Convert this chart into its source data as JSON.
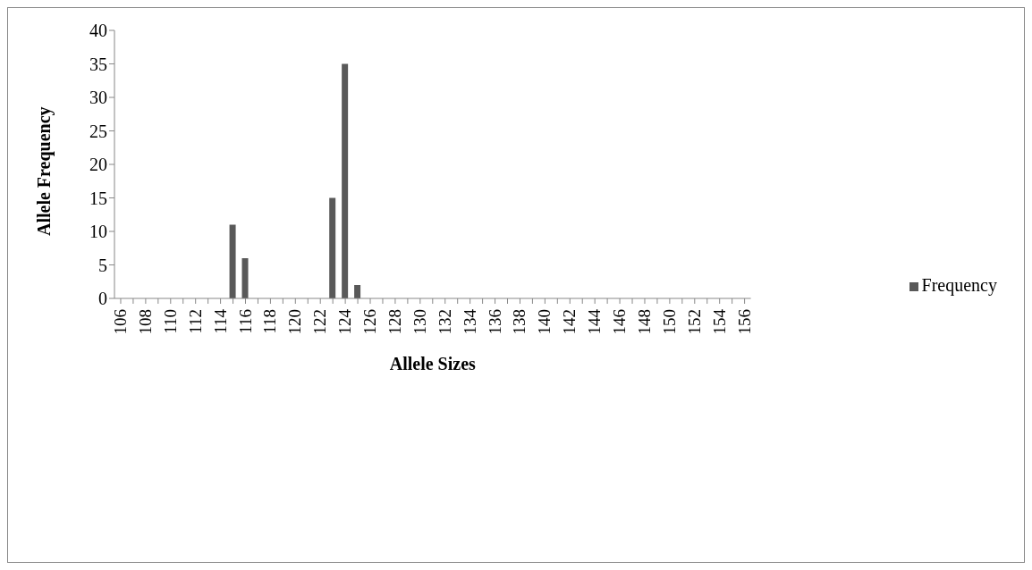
{
  "chart_data": {
    "type": "bar",
    "xlabel": "Allele Sizes",
    "ylabel": "Allele Frequency",
    "categories": [
      "106",
      null,
      "108",
      null,
      "110",
      null,
      "112",
      null,
      "114",
      null,
      "116",
      null,
      "118",
      null,
      "120",
      null,
      "122",
      null,
      "124",
      null,
      "126",
      null,
      "128",
      null,
      "130",
      null,
      "132",
      null,
      "134",
      null,
      "136",
      null,
      "138",
      null,
      "140",
      null,
      "142",
      null,
      "144",
      null,
      "146",
      null,
      "148",
      null,
      "150",
      null,
      "152",
      null,
      "154",
      null,
      "156"
    ],
    "series": [
      {
        "name": "Frequency",
        "color": "#595959",
        "values": [
          0,
          0,
          0,
          0,
          0,
          0,
          0,
          0,
          0,
          11,
          6,
          0,
          0,
          0,
          0,
          0,
          0,
          15,
          35,
          2,
          0,
          0,
          0,
          0,
          0,
          0,
          0,
          0,
          0,
          0,
          0,
          0,
          0,
          0,
          0,
          0,
          0,
          0,
          0,
          0,
          0,
          0,
          0,
          0,
          0,
          0,
          0,
          0,
          0,
          0,
          0
        ]
      }
    ],
    "ylim": [
      0,
      40
    ],
    "yticks": [
      0,
      5,
      10,
      15,
      20,
      25,
      30,
      35,
      40
    ],
    "grid": false,
    "legend": "right"
  }
}
